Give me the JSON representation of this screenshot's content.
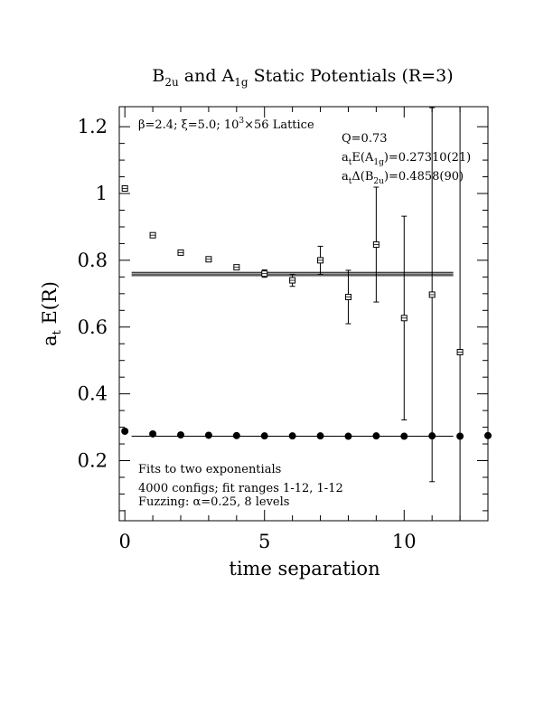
{
  "chart_data": {
    "type": "scatter",
    "title_parts": {
      "b": "B",
      "b_sub": "2u",
      "and": " and A",
      "a_sub": "1g",
      "rest": " Static Potentials (R=3)"
    },
    "xlabel": "time separation",
    "ylabel": {
      "a": "a",
      "a_sub": "t",
      "rest": " E(R)"
    },
    "xlim": [
      -0.2,
      13
    ],
    "ylim": [
      0.02,
      1.26
    ],
    "xticks": [
      0,
      5,
      10
    ],
    "yticks": [
      0.2,
      0.4,
      0.6,
      0.8,
      1
    ],
    "ytick_extra": "1.2",
    "x_tick_labels": [
      "0",
      "5",
      "10"
    ],
    "y_tick_labels": [
      "0.2",
      "0.4",
      "0.6",
      "0.8",
      "1",
      "1.2"
    ],
    "lattice_info": {
      "beta": "β=2.4; ξ=5.0; 10",
      "exp": "3",
      "rest": "×56 Lattice"
    },
    "fit_info": {
      "q": "Q=0.73",
      "e_a1g": {
        "pre": "a",
        "sub1": "t",
        "mid": "E(A",
        "sub2": "1g",
        "post": ")=0.27310(21)"
      },
      "d_b2u": {
        "pre": "a",
        "sub1": "t",
        "mid": "Δ(B",
        "sub2": "2u",
        "post": ")=0.4858(90)"
      }
    },
    "notes": [
      "Fits to two exponentials",
      "4000 configs; fit ranges 1-12, 1-12",
      "Fuzzing: α=0.25, 8 levels"
    ],
    "series": [
      {
        "marker": "open-square",
        "points": [
          {
            "x": 0,
            "y": 1.015,
            "err": 0.004
          },
          {
            "x": 1,
            "y": 0.875,
            "err": 0.005
          },
          {
            "x": 2,
            "y": 0.823,
            "err": 0.005
          },
          {
            "x": 3,
            "y": 0.803,
            "err": 0.006
          },
          {
            "x": 4,
            "y": 0.779,
            "err": 0.007
          },
          {
            "x": 5,
            "y": 0.76,
            "err": 0.011
          },
          {
            "x": 6,
            "y": 0.74,
            "err": 0.018
          },
          {
            "x": 7,
            "y": 0.8,
            "err": 0.042
          },
          {
            "x": 8,
            "y": 0.69,
            "err": 0.08
          },
          {
            "x": 9,
            "y": 0.847,
            "err": 0.172
          },
          {
            "x": 10,
            "y": 0.627,
            "err": 0.305
          },
          {
            "x": 11,
            "y": 0.697,
            "err": 0.56
          },
          {
            "x": 12,
            "y": 0.525,
            "err": 0.9
          }
        ],
        "fit": {
          "value": 0.7589,
          "err": 0.009,
          "x_range": [
            0.5,
            11.5
          ]
        }
      },
      {
        "marker": "filled-circle",
        "points": [
          {
            "x": 0,
            "y": 0.288,
            "err": 0.002
          },
          {
            "x": 1,
            "y": 0.28,
            "err": 0.002
          },
          {
            "x": 2,
            "y": 0.277,
            "err": 0.002
          },
          {
            "x": 3,
            "y": 0.276,
            "err": 0.002
          },
          {
            "x": 4,
            "y": 0.275,
            "err": 0.002
          },
          {
            "x": 5,
            "y": 0.274,
            "err": 0.002
          },
          {
            "x": 6,
            "y": 0.274,
            "err": 0.002
          },
          {
            "x": 7,
            "y": 0.274,
            "err": 0.002
          },
          {
            "x": 8,
            "y": 0.273,
            "err": 0.002
          },
          {
            "x": 9,
            "y": 0.274,
            "err": 0.002
          },
          {
            "x": 10,
            "y": 0.273,
            "err": 0.002
          },
          {
            "x": 11,
            "y": 0.274,
            "err": 0.002
          },
          {
            "x": 12,
            "y": 0.273,
            "err": 0.002
          },
          {
            "x": 13,
            "y": 0.275,
            "err": 0.002
          }
        ],
        "fit": {
          "value": 0.2731,
          "err": 0.0002,
          "x_range": [
            0.5,
            11.5
          ]
        }
      }
    ]
  }
}
